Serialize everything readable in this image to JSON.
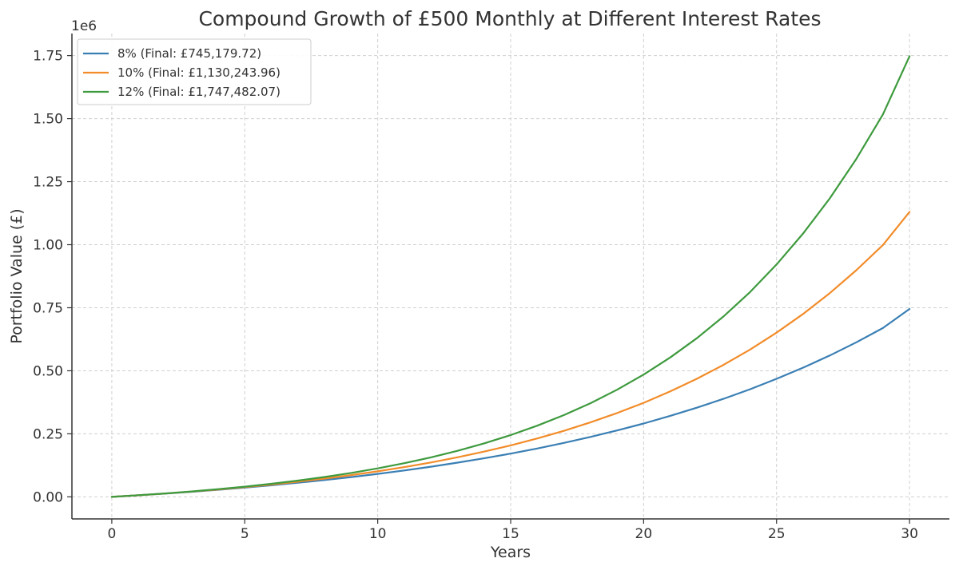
{
  "chart_data": {
    "type": "line",
    "title": "Compound Growth of £500 Monthly at Different Interest Rates",
    "xlabel": "Years",
    "ylabel": "Portfolio Value (£)",
    "y_offset_label": "1e6",
    "xlim": [
      -1.5,
      31.5
    ],
    "ylim": [
      -0.0875,
      1.8375
    ],
    "y_unit_multiplier": 1000000,
    "x_ticks": [
      0,
      5,
      10,
      15,
      20,
      25,
      30
    ],
    "x_tick_labels": [
      "0",
      "5",
      "10",
      "15",
      "20",
      "25",
      "30"
    ],
    "y_ticks": [
      0,
      0.25,
      0.5,
      0.75,
      1.0,
      1.25,
      1.5,
      1.75
    ],
    "y_tick_labels": [
      "0.00",
      "0.25",
      "0.50",
      "0.75",
      "1.00",
      "1.25",
      "1.50",
      "1.75"
    ],
    "grid": true,
    "legend_position": "top-left",
    "x": [
      0,
      1,
      2,
      3,
      4,
      5,
      6,
      7,
      8,
      9,
      10,
      11,
      12,
      13,
      14,
      15,
      16,
      17,
      18,
      19,
      20,
      21,
      22,
      23,
      24,
      25,
      26,
      27,
      28,
      29,
      30
    ],
    "series": [
      {
        "name": "8% (Final: £745,179.72)",
        "color": "#3a7fb4",
        "values": [
          0,
          0.0062,
          0.013,
          0.0203,
          0.0282,
          0.0367,
          0.0459,
          0.0559,
          0.0668,
          0.0785,
          0.0911,
          0.1048,
          0.1196,
          0.1356,
          0.1529,
          0.1716,
          0.1919,
          0.2139,
          0.2376,
          0.2633,
          0.291,
          0.3211,
          0.3536,
          0.3888,
          0.4268,
          0.468,
          0.5125,
          0.5607,
          0.6129,
          0.6694,
          0.7452
        ]
      },
      {
        "name": "10% (Final: £1,130,243.96)",
        "color": "#f28c2a",
        "values": [
          0,
          0.0063,
          0.0132,
          0.0209,
          0.0293,
          0.0385,
          0.0488,
          0.0601,
          0.0725,
          0.0862,
          0.1013,
          0.118,
          0.1364,
          0.1568,
          0.1793,
          0.2041,
          0.2315,
          0.2618,
          0.2952,
          0.3322,
          0.373,
          0.4182,
          0.468,
          0.5231,
          0.584,
          0.6513,
          0.7257,
          0.8078,
          0.8986,
          0.9989,
          1.1302
        ]
      },
      {
        "name": "12% (Final: £1,747,482.07)",
        "color": "#3e9a3e",
        "values": [
          0,
          0.0064,
          0.0135,
          0.0215,
          0.0305,
          0.0405,
          0.0518,
          0.0645,
          0.0788,
          0.0949,
          0.113,
          0.1335,
          0.1566,
          0.1826,
          0.2119,
          0.245,
          0.2822,
          0.3241,
          0.3714,
          0.4247,
          0.4848,
          0.5526,
          0.629,
          0.7151,
          0.8121,
          0.9215,
          1.0448,
          1.1837,
          1.3402,
          1.5167,
          1.7475
        ]
      }
    ]
  }
}
